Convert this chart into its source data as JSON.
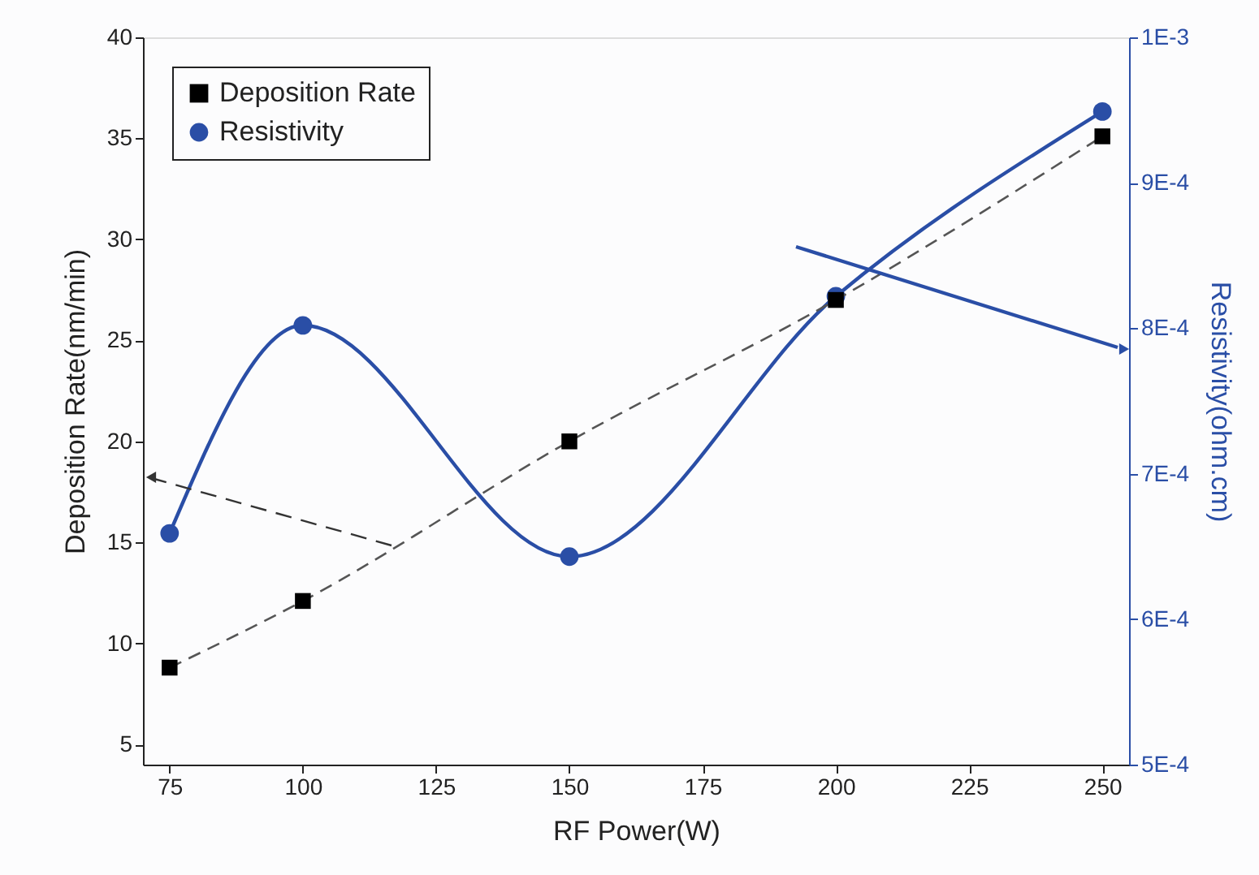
{
  "chart_data": {
    "type": "line",
    "xlabel": "RF Power(W)",
    "ylabel": "Deposition Rate(nm/min)",
    "y2label": "Resistivity(ohm.cm)",
    "x": [
      75,
      100,
      150,
      200,
      250
    ],
    "series": [
      {
        "name": "Deposition Rate",
        "color": "#000000",
        "marker": "square",
        "line_style": "dashed",
        "values": [
          8.8,
          12.1,
          20.0,
          27.0,
          35.1
        ]
      },
      {
        "name": "Resistivity",
        "color": "#2a4ea6",
        "marker": "circle",
        "line_style": "solid",
        "axis": "y2",
        "values": [
          0.000659,
          0.000802,
          0.000643,
          0.000822,
          0.000949
        ]
      }
    ],
    "xlim": [
      70,
      255
    ],
    "xticks": [
      75,
      100,
      125,
      150,
      175,
      200,
      225,
      250
    ],
    "ylim": [
      4,
      40
    ],
    "yticks": [
      5,
      10,
      15,
      20,
      25,
      30,
      35,
      40
    ],
    "y2lim": [
      0.0005,
      0.001
    ],
    "y2ticks": [
      {
        "value": 0.0005,
        "label": "5E-4"
      },
      {
        "value": 0.0006,
        "label": "6E-4"
      },
      {
        "value": 0.0007,
        "label": "7E-4"
      },
      {
        "value": 0.0008,
        "label": "8E-4"
      },
      {
        "value": 0.0009,
        "label": "9E-4"
      },
      {
        "value": 0.001,
        "label": "1E-3"
      }
    ],
    "legend": "top left",
    "grid": false
  }
}
